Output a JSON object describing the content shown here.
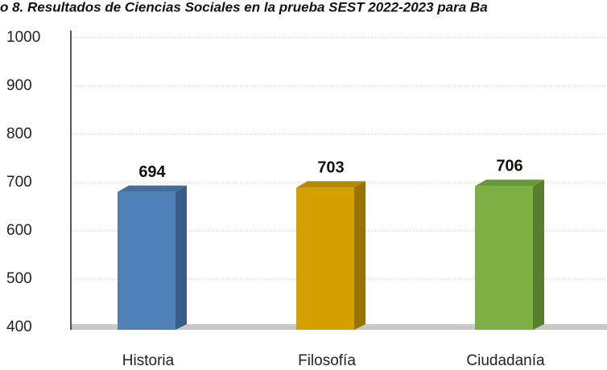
{
  "chart_data": {
    "type": "bar3d",
    "title": "o 8. Resultados de Ciencias Sociales en la prueba SEST 2022-2023 para Ba",
    "categories": [
      "Historia",
      "Filosofía",
      "Ciudadanía"
    ],
    "values": [
      694,
      703,
      706
    ],
    "colors": [
      "#4f81b8",
      "#d4a000",
      "#7daf43"
    ],
    "ylim": [
      400,
      1000
    ],
    "yticks": [
      400,
      500,
      600,
      700,
      800,
      900,
      1000
    ],
    "grid": true
  }
}
